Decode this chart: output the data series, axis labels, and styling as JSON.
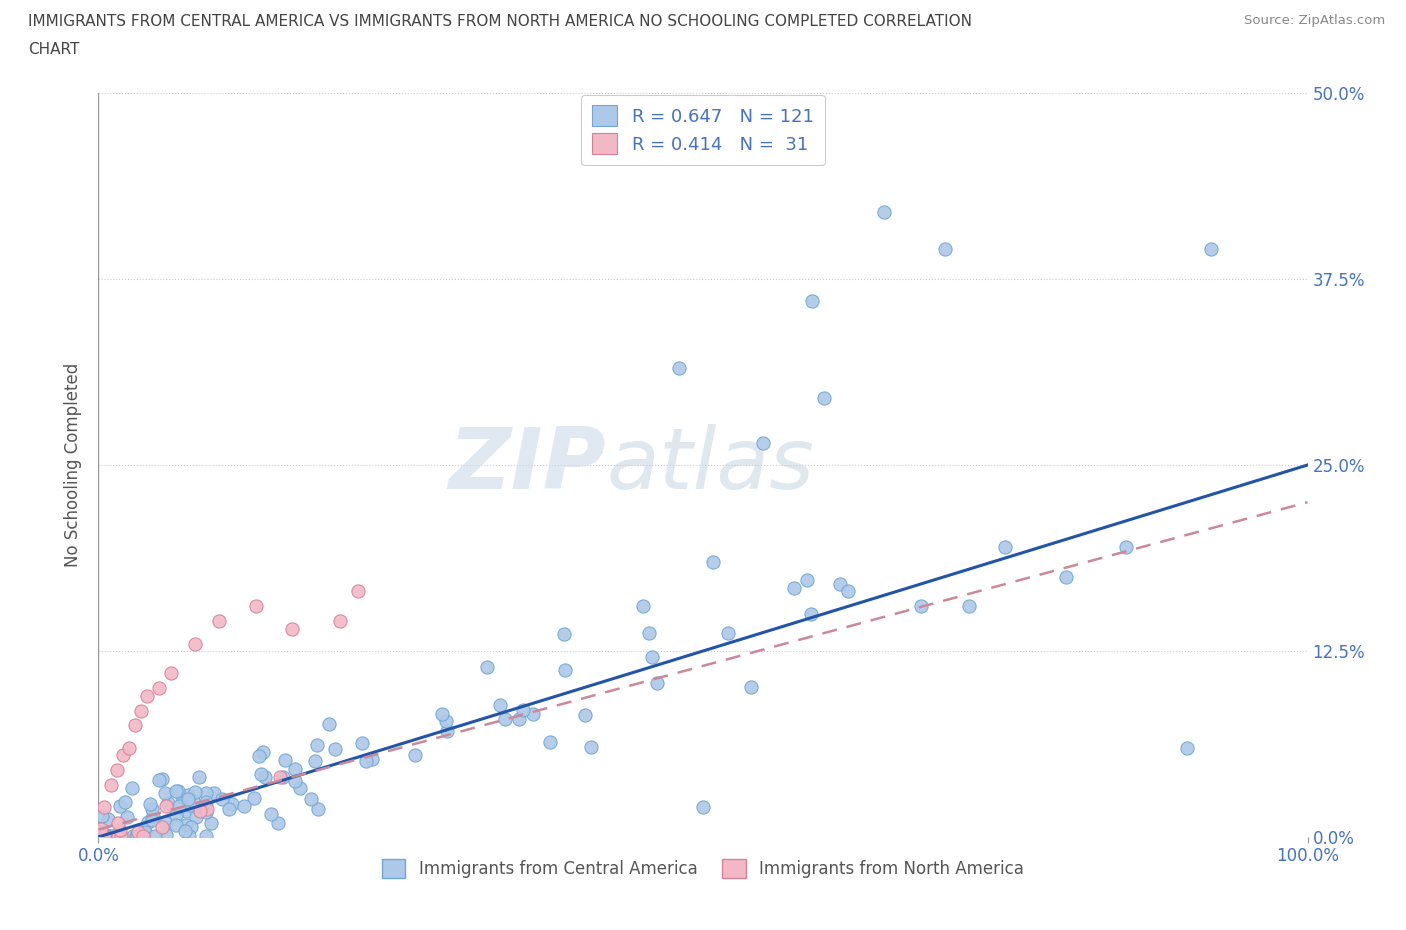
{
  "title_line1": "IMMIGRANTS FROM CENTRAL AMERICA VS IMMIGRANTS FROM NORTH AMERICA NO SCHOOLING COMPLETED CORRELATION",
  "title_line2": "CHART",
  "source": "Source: ZipAtlas.com",
  "xlabel_bottom": "Immigrants from Central America",
  "xlabel_bottom2": "Immigrants from North America",
  "ylabel": "No Schooling Completed",
  "watermark": "ZIPatlas",
  "series1_color": "#adc8e8",
  "series1_edge": "#6fa8d4",
  "series2_color": "#f2b8c6",
  "series2_edge": "#d98099",
  "line1_color": "#2255aa",
  "line2_color": "#cc8899",
  "R1": 0.647,
  "N1": 121,
  "R2": 0.414,
  "N2": 31,
  "xlim": [
    0.0,
    1.0
  ],
  "ylim": [
    0.0,
    0.5
  ],
  "yticks": [
    0.0,
    0.125,
    0.25,
    0.375,
    0.5
  ],
  "ytick_labels": [
    "0.0%",
    "12.5%",
    "25.0%",
    "37.5%",
    "50.0%"
  ],
  "xtick_labels": [
    "0.0%",
    "100.0%"
  ],
  "title_color": "#444444",
  "axis_label_color": "#555555",
  "tick_label_color": "#4472c4",
  "corr_text_color": "#4472c4",
  "grid_color": "#cccccc",
  "background_color": "#ffffff",
  "line1_x_end": 1.0,
  "line1_y_end": 0.25,
  "line2_x_end": 1.0,
  "line2_y_end": 0.235
}
